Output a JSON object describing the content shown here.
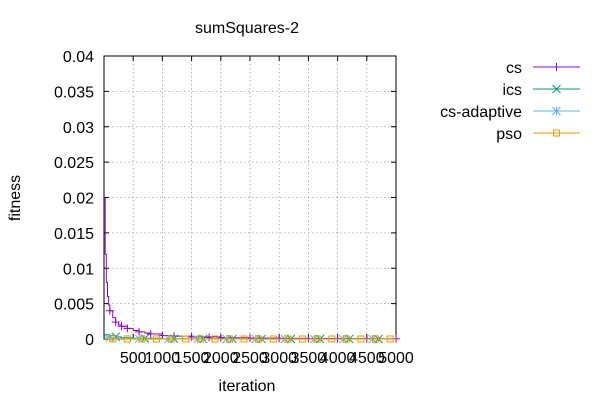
{
  "chart_data": {
    "type": "line",
    "title": "sumSquares-2",
    "xlabel": "iteration",
    "ylabel": "fitness",
    "xlim": [
      0,
      5000
    ],
    "ylim": [
      0,
      0.04
    ],
    "x_ticks": [
      500,
      1000,
      1500,
      2000,
      2500,
      3000,
      3500,
      4000,
      4500,
      5000
    ],
    "y_ticks": [
      0,
      0.005,
      0.01,
      0.015,
      0.02,
      0.025,
      0.03,
      0.035,
      0.04
    ],
    "x_tick_labels": [
      "500",
      "1000",
      "1500",
      "2000",
      "2500",
      "3000",
      "3500",
      "4000",
      "4500",
      "5000"
    ],
    "y_tick_labels": [
      "0",
      "0.005",
      "0.01",
      "0.015",
      "0.02",
      "0.025",
      "0.03",
      "0.035",
      "0.04"
    ],
    "grid": true,
    "legend_position": "right",
    "series": [
      {
        "name": "cs",
        "color": "#9400d3",
        "marker": "plus",
        "x": [
          10,
          20,
          40,
          60,
          80,
          100,
          150,
          200,
          250,
          300,
          400,
          500,
          600,
          700,
          800,
          1000,
          1200,
          1500,
          2000,
          2500,
          3000,
          3500,
          4000,
          4500,
          5000
        ],
        "y": [
          0.02,
          0.012,
          0.008,
          0.006,
          0.0048,
          0.004,
          0.003,
          0.0024,
          0.002,
          0.0018,
          0.0015,
          0.0012,
          0.001,
          0.00085,
          0.0007,
          0.0005,
          0.0004,
          0.0003,
          0.00018,
          0.00012,
          9e-05,
          7e-05,
          5e-05,
          4e-05,
          3e-05
        ],
        "marker_x": [
          100,
          200,
          300,
          400,
          600,
          800,
          1000,
          1200,
          1500,
          1800,
          2000,
          2500,
          3000,
          3500,
          4000,
          4500,
          5000
        ]
      },
      {
        "name": "ics",
        "color": "#009e73",
        "marker": "cross",
        "x": [
          10,
          100,
          200,
          300,
          500,
          1000,
          2000,
          3000,
          4000,
          5000
        ],
        "y": [
          0.0006,
          0.0005,
          0.0003,
          0.0002,
          0.0001,
          4e-05,
          1e-05,
          5e-06,
          2e-06,
          1e-06
        ],
        "marker_x": [
          200,
          700,
          1200,
          1700,
          2200,
          2700,
          3200,
          3700,
          4200,
          4700
        ]
      },
      {
        "name": "cs-adaptive",
        "color": "#56b4e9",
        "marker": "star",
        "x": [
          10,
          100,
          200,
          500,
          1000,
          2000,
          3000,
          4000,
          5000
        ],
        "y": [
          0.0004,
          0.0002,
          0.0001,
          3e-05,
          1e-05,
          3e-06,
          1e-06,
          5e-07,
          2e-07
        ],
        "marker_x": [
          100,
          600,
          1100,
          1600,
          2100,
          2600,
          3100,
          3600,
          4100,
          4600
        ]
      },
      {
        "name": "pso",
        "color": "#e69f00",
        "marker": "square",
        "x": [
          10,
          100,
          300,
          1000,
          2000,
          3000,
          4000,
          5000
        ],
        "y": [
          5e-05,
          2e-05,
          1e-05,
          2e-06,
          5e-07,
          2e-07,
          1e-07,
          5e-08
        ],
        "marker_x": [
          150,
          400,
          650,
          900,
          1150,
          1400,
          1650,
          1900,
          2150,
          2400,
          2650,
          2900,
          3150,
          3400,
          3650,
          3900,
          4150,
          4400,
          4650,
          4900
        ]
      }
    ]
  }
}
